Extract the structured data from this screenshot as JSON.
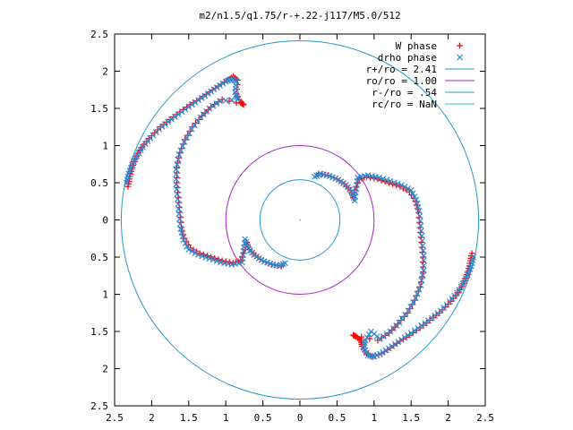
{
  "chart_data": {
    "type": "scatter",
    "title": "m2/n1.5/q1.75/r-+.22-j117/M5.0/512",
    "xlim": [
      -2.5,
      2.5
    ],
    "ylim": [
      -2.5,
      2.5
    ],
    "x_ticks": [
      -2.5,
      -2,
      -1.5,
      -1,
      -0.5,
      0,
      0.5,
      1,
      1.5,
      2,
      2.5
    ],
    "y_ticks": [
      -2.5,
      -2,
      -1.5,
      -1,
      -0.5,
      0,
      0.5,
      1,
      1.5,
      2,
      2.5
    ],
    "x_tick_labels": [
      "2.5",
      "2",
      "1.5",
      "1",
      "0.5",
      "0",
      "0.5",
      "1",
      "1.5",
      "2",
      "2.5"
    ],
    "y_tick_labels": [
      "2.5",
      "2",
      "1.5",
      "1",
      "0.5",
      "0",
      "0.5",
      "1",
      "1.5",
      "2",
      "2.5"
    ],
    "grid": false,
    "legend_position": "top-right",
    "circles": [
      {
        "name": "r+/ro = 2.41",
        "radius": 2.41,
        "color": "#2299cc"
      },
      {
        "name": "ro/ro = 1.00",
        "radius": 1.0,
        "color": "#aa22cc"
      },
      {
        "name": "r-/ro = .54",
        "radius": 0.54,
        "color": "#2299cc"
      },
      {
        "name": "rc/ro = NaN",
        "radius": null,
        "color": "#22cccc"
      }
    ],
    "series": [
      {
        "name": "W phase",
        "marker": "+",
        "color": "#ff0000",
        "points": [
          [
            -2.32,
            0.45
          ],
          [
            -2.3,
            0.55
          ],
          [
            -2.28,
            0.65
          ],
          [
            -2.24,
            0.78
          ],
          [
            -2.18,
            0.9
          ],
          [
            -2.1,
            1.02
          ],
          [
            -2.0,
            1.13
          ],
          [
            -1.88,
            1.25
          ],
          [
            -1.75,
            1.35
          ],
          [
            -1.62,
            1.45
          ],
          [
            -1.48,
            1.55
          ],
          [
            -1.35,
            1.63
          ],
          [
            -1.22,
            1.72
          ],
          [
            -1.1,
            1.8
          ],
          [
            -0.98,
            1.88
          ],
          [
            -0.9,
            1.93
          ],
          [
            -0.84,
            1.88
          ],
          [
            -0.86,
            1.7
          ],
          [
            -0.8,
            1.58
          ],
          [
            -0.76,
            1.55
          ],
          [
            -1.05,
            1.62
          ],
          [
            -1.2,
            1.52
          ],
          [
            -1.32,
            1.4
          ],
          [
            -1.45,
            1.25
          ],
          [
            -1.55,
            1.08
          ],
          [
            -1.62,
            0.9
          ],
          [
            -1.66,
            0.7
          ],
          [
            -1.66,
            0.5
          ],
          [
            -1.64,
            0.3
          ],
          [
            -1.62,
            0.1
          ],
          [
            -1.6,
            -0.1
          ],
          [
            -1.56,
            -0.25
          ],
          [
            -1.48,
            -0.38
          ],
          [
            -1.35,
            -0.45
          ],
          [
            -1.2,
            -0.5
          ],
          [
            -1.05,
            -0.55
          ],
          [
            -0.9,
            -0.58
          ],
          [
            -0.8,
            -0.55
          ],
          [
            -0.74,
            -0.4
          ],
          [
            -0.72,
            -0.3
          ],
          [
            -0.68,
            -0.4
          ],
          [
            -0.6,
            -0.48
          ],
          [
            -0.5,
            -0.55
          ],
          [
            -0.38,
            -0.6
          ],
          [
            -0.25,
            -0.62
          ],
          [
            2.32,
            -0.45
          ],
          [
            2.3,
            -0.55
          ],
          [
            2.28,
            -0.65
          ],
          [
            2.24,
            -0.78
          ],
          [
            2.18,
            -0.9
          ],
          [
            2.1,
            -1.02
          ],
          [
            2.0,
            -1.13
          ],
          [
            1.88,
            -1.25
          ],
          [
            1.75,
            -1.35
          ],
          [
            1.62,
            -1.45
          ],
          [
            1.48,
            -1.55
          ],
          [
            1.35,
            -1.63
          ],
          [
            1.22,
            -1.72
          ],
          [
            1.1,
            -1.8
          ],
          [
            0.98,
            -1.84
          ],
          [
            0.9,
            -1.8
          ],
          [
            0.84,
            -1.7
          ],
          [
            0.82,
            -1.62
          ],
          [
            0.76,
            -1.57
          ],
          [
            0.72,
            -1.55
          ],
          [
            1.05,
            -1.62
          ],
          [
            1.2,
            -1.52
          ],
          [
            1.32,
            -1.4
          ],
          [
            1.45,
            -1.25
          ],
          [
            1.55,
            -1.08
          ],
          [
            1.62,
            -0.9
          ],
          [
            1.66,
            -0.7
          ],
          [
            1.66,
            -0.5
          ],
          [
            1.64,
            -0.3
          ],
          [
            1.62,
            -0.1
          ],
          [
            1.6,
            0.1
          ],
          [
            1.56,
            0.25
          ],
          [
            1.48,
            0.38
          ],
          [
            1.35,
            0.45
          ],
          [
            1.2,
            0.5
          ],
          [
            1.05,
            0.55
          ],
          [
            0.9,
            0.58
          ],
          [
            0.8,
            0.55
          ],
          [
            0.74,
            0.4
          ],
          [
            0.72,
            0.3
          ],
          [
            0.68,
            0.4
          ],
          [
            0.6,
            0.48
          ],
          [
            0.5,
            0.55
          ],
          [
            0.38,
            0.6
          ],
          [
            0.25,
            0.62
          ]
        ]
      },
      {
        "name": "drho phase",
        "marker": "x",
        "color": "#2a8ad8",
        "points": [
          [
            -2.34,
            0.5
          ],
          [
            -2.31,
            0.62
          ],
          [
            -2.26,
            0.74
          ],
          [
            -2.2,
            0.86
          ],
          [
            -2.12,
            0.98
          ],
          [
            -2.02,
            1.1
          ],
          [
            -1.9,
            1.22
          ],
          [
            -1.78,
            1.32
          ],
          [
            -1.64,
            1.42
          ],
          [
            -1.5,
            1.52
          ],
          [
            -1.37,
            1.61
          ],
          [
            -1.24,
            1.7
          ],
          [
            -1.12,
            1.78
          ],
          [
            -1.0,
            1.86
          ],
          [
            -0.92,
            1.9
          ],
          [
            -0.86,
            1.86
          ],
          [
            -0.87,
            1.72
          ],
          [
            -0.84,
            1.62
          ],
          [
            -1.08,
            1.6
          ],
          [
            -1.22,
            1.5
          ],
          [
            -1.34,
            1.38
          ],
          [
            -1.46,
            1.22
          ],
          [
            -1.56,
            1.05
          ],
          [
            -1.63,
            0.88
          ],
          [
            -1.67,
            0.68
          ],
          [
            -1.67,
            0.48
          ],
          [
            -1.65,
            0.28
          ],
          [
            -1.63,
            0.08
          ],
          [
            -1.61,
            -0.12
          ],
          [
            -1.57,
            -0.27
          ],
          [
            -1.5,
            -0.4
          ],
          [
            -1.37,
            -0.47
          ],
          [
            -1.22,
            -0.52
          ],
          [
            -1.07,
            -0.57
          ],
          [
            -0.92,
            -0.6
          ],
          [
            -0.78,
            -0.57
          ],
          [
            -0.76,
            -0.42
          ],
          [
            -0.74,
            -0.26
          ],
          [
            -0.7,
            -0.38
          ],
          [
            -0.62,
            -0.47
          ],
          [
            -0.52,
            -0.54
          ],
          [
            -0.4,
            -0.59
          ],
          [
            -0.28,
            -0.62
          ],
          [
            -0.2,
            -0.58
          ],
          [
            2.34,
            -0.5
          ],
          [
            2.31,
            -0.62
          ],
          [
            2.26,
            -0.74
          ],
          [
            2.2,
            -0.86
          ],
          [
            2.12,
            -0.98
          ],
          [
            2.02,
            -1.1
          ],
          [
            1.9,
            -1.22
          ],
          [
            1.78,
            -1.32
          ],
          [
            1.64,
            -1.42
          ],
          [
            1.5,
            -1.52
          ],
          [
            1.37,
            -1.61
          ],
          [
            1.24,
            -1.7
          ],
          [
            1.12,
            -1.78
          ],
          [
            1.0,
            -1.84
          ],
          [
            0.92,
            -1.82
          ],
          [
            0.86,
            -1.72
          ],
          [
            0.88,
            -1.62
          ],
          [
            0.96,
            -1.5
          ],
          [
            1.08,
            -1.6
          ],
          [
            1.22,
            -1.5
          ],
          [
            1.34,
            -1.38
          ],
          [
            1.46,
            -1.22
          ],
          [
            1.56,
            -1.05
          ],
          [
            1.63,
            -0.88
          ],
          [
            1.67,
            -0.68
          ],
          [
            1.67,
            -0.48
          ],
          [
            1.65,
            -0.28
          ],
          [
            1.63,
            -0.08
          ],
          [
            1.61,
            0.12
          ],
          [
            1.57,
            0.27
          ],
          [
            1.5,
            0.4
          ],
          [
            1.37,
            0.47
          ],
          [
            1.22,
            0.52
          ],
          [
            1.07,
            0.57
          ],
          [
            0.92,
            0.6
          ],
          [
            0.78,
            0.57
          ],
          [
            0.76,
            0.42
          ],
          [
            0.74,
            0.26
          ],
          [
            0.7,
            0.38
          ],
          [
            0.62,
            0.47
          ],
          [
            0.52,
            0.54
          ],
          [
            0.4,
            0.59
          ],
          [
            0.28,
            0.62
          ],
          [
            0.2,
            0.58
          ]
        ]
      }
    ]
  }
}
